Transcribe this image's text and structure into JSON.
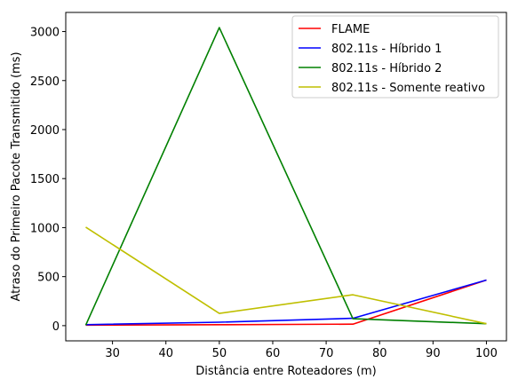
{
  "chart_data": {
    "type": "line",
    "title": "",
    "xlabel": "Distância entre Roteadores (m)",
    "ylabel": "Atraso do Primeiro Pacote Transmitido (ms)",
    "x": [
      25,
      50,
      75,
      100
    ],
    "xlim": [
      21.25,
      103.75
    ],
    "ylim": [
      -155,
      3195
    ],
    "xticks": [
      30,
      40,
      50,
      60,
      70,
      80,
      90,
      100
    ],
    "yticks": [
      0,
      500,
      1000,
      1500,
      2000,
      2500,
      3000
    ],
    "grid": false,
    "legend_position": "top-right",
    "series": [
      {
        "name": "FLAME",
        "color": "#ff0000",
        "values": [
          5,
          10,
          15,
          465
        ]
      },
      {
        "name": "802.11s - Híbrido 1",
        "color": "#0000ff",
        "values": [
          10,
          35,
          75,
          465
        ]
      },
      {
        "name": "802.11s - Híbrido 2",
        "color": "#008000",
        "values": [
          5,
          3040,
          70,
          20
        ]
      },
      {
        "name": "802.11s - Somente reativo",
        "color": "#bfbf00",
        "values": [
          1005,
          125,
          315,
          20
        ]
      }
    ]
  }
}
